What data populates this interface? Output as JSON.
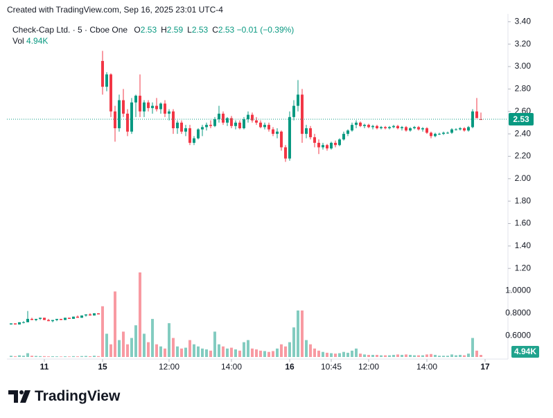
{
  "header": {
    "credit": "Created with TradingView.com, Sep 16, 2025 23:01 UTC-4"
  },
  "footer": {
    "brand": "TradingView"
  },
  "chart_data": {
    "type": "candlestick",
    "title": "Check-Cap Ltd. · 5 · Cboe One",
    "legend": {
      "labels": [
        "O",
        "H",
        "L",
        "C"
      ],
      "values": [
        2.53,
        2.59,
        2.53,
        2.53
      ],
      "change": "−0.01 (−0.39%)",
      "volume_name": "Vol",
      "volume": "4.94K"
    },
    "up_color": "#089981",
    "down_color": "#f23645",
    "open": [
      0.7,
      0.71,
      0.7,
      0.72,
      0.72,
      0.75,
      0.74,
      0.75,
      0.76,
      0.74,
      0.73,
      0.74,
      0.75,
      0.74,
      0.76,
      0.75,
      0.77,
      0.76,
      0.78,
      0.79,
      0.78,
      0.8,
      3.05,
      2.82,
      2.93,
      2.6,
      2.45,
      2.7,
      2.58,
      2.42,
      2.68,
      2.74,
      2.6,
      2.68,
      2.63,
      2.65,
      2.62,
      2.67,
      2.58,
      2.6,
      2.45,
      2.5,
      2.42,
      2.45,
      2.32,
      2.36,
      2.44,
      2.46,
      2.48,
      2.47,
      2.53,
      2.58,
      2.5,
      2.54,
      2.47,
      2.5,
      2.45,
      2.53,
      2.57,
      2.52,
      2.5,
      2.46,
      2.48,
      2.44,
      2.4,
      2.42,
      2.28,
      2.18,
      2.55,
      2.65,
      2.75,
      2.4,
      2.45,
      2.37,
      2.32,
      2.28,
      2.3,
      2.27,
      2.32,
      2.3,
      2.35,
      2.4,
      2.43,
      2.48,
      2.5,
      2.47,
      2.48,
      2.46,
      2.47,
      2.45,
      2.46,
      2.45,
      2.46,
      2.47,
      2.45,
      2.46,
      2.43,
      2.45,
      2.46,
      2.44,
      2.45,
      2.41,
      2.38,
      2.4,
      2.4,
      2.41,
      2.41,
      2.44,
      2.44,
      2.45,
      2.43,
      2.46,
      2.6,
      2.53
    ],
    "high": [
      0.71,
      0.71,
      0.72,
      0.73,
      0.82,
      0.76,
      0.75,
      0.76,
      0.76,
      0.75,
      0.74,
      0.75,
      0.75,
      0.76,
      0.76,
      0.77,
      0.78,
      0.78,
      0.79,
      0.8,
      0.8,
      0.8,
      3.14,
      2.95,
      2.94,
      2.65,
      2.75,
      2.8,
      2.62,
      2.72,
      2.75,
      2.93,
      2.7,
      2.7,
      2.68,
      2.72,
      2.68,
      2.7,
      2.62,
      2.62,
      2.52,
      2.52,
      2.48,
      2.48,
      2.38,
      2.45,
      2.48,
      2.5,
      2.52,
      2.55,
      2.65,
      2.6,
      2.55,
      2.56,
      2.52,
      2.52,
      2.55,
      2.6,
      2.59,
      2.55,
      2.52,
      2.5,
      2.5,
      2.46,
      2.45,
      2.43,
      2.3,
      2.6,
      2.7,
      2.88,
      2.8,
      2.48,
      2.47,
      2.4,
      2.35,
      2.32,
      2.31,
      2.33,
      2.34,
      2.36,
      2.42,
      2.44,
      2.5,
      2.52,
      2.51,
      2.49,
      2.49,
      2.48,
      2.48,
      2.47,
      2.47,
      2.47,
      2.48,
      2.48,
      2.47,
      2.47,
      2.46,
      2.47,
      2.47,
      2.46,
      2.46,
      2.42,
      2.41,
      2.41,
      2.42,
      2.42,
      2.45,
      2.45,
      2.46,
      2.46,
      2.47,
      2.62,
      2.72,
      2.59
    ],
    "low": [
      0.7,
      0.7,
      0.7,
      0.71,
      0.72,
      0.74,
      0.73,
      0.74,
      0.74,
      0.73,
      0.72,
      0.73,
      0.74,
      0.74,
      0.75,
      0.75,
      0.76,
      0.76,
      0.77,
      0.78,
      0.78,
      0.79,
      2.75,
      2.78,
      2.55,
      2.33,
      2.42,
      2.55,
      2.38,
      2.4,
      2.55,
      2.55,
      2.55,
      2.6,
      2.58,
      2.6,
      2.58,
      2.55,
      2.52,
      2.4,
      2.4,
      2.4,
      2.38,
      2.3,
      2.3,
      2.35,
      2.38,
      2.43,
      2.45,
      2.46,
      2.5,
      2.48,
      2.47,
      2.45,
      2.44,
      2.44,
      2.44,
      2.5,
      2.5,
      2.48,
      2.45,
      2.44,
      2.42,
      2.38,
      2.36,
      2.25,
      2.15,
      2.16,
      2.52,
      2.6,
      2.32,
      2.36,
      2.35,
      2.28,
      2.22,
      2.26,
      2.25,
      2.26,
      2.28,
      2.29,
      2.34,
      2.38,
      2.42,
      2.45,
      2.46,
      2.45,
      2.45,
      2.44,
      2.44,
      2.44,
      2.44,
      2.44,
      2.45,
      2.44,
      2.43,
      2.42,
      2.42,
      2.44,
      2.43,
      2.42,
      2.4,
      2.36,
      2.37,
      2.39,
      2.39,
      2.4,
      2.4,
      2.43,
      2.43,
      2.42,
      2.42,
      2.45,
      2.55,
      2.53
    ],
    "close": [
      0.71,
      0.7,
      0.72,
      0.72,
      0.75,
      0.74,
      0.75,
      0.76,
      0.74,
      0.73,
      0.74,
      0.75,
      0.74,
      0.76,
      0.75,
      0.77,
      0.76,
      0.78,
      0.79,
      0.78,
      0.8,
      0.79,
      2.82,
      2.93,
      2.6,
      2.45,
      2.7,
      2.58,
      2.42,
      2.68,
      2.74,
      2.6,
      2.68,
      2.63,
      2.65,
      2.62,
      2.67,
      2.58,
      2.6,
      2.45,
      2.5,
      2.42,
      2.45,
      2.32,
      2.36,
      2.44,
      2.46,
      2.48,
      2.47,
      2.53,
      2.58,
      2.5,
      2.54,
      2.47,
      2.5,
      2.45,
      2.53,
      2.57,
      2.52,
      2.5,
      2.46,
      2.48,
      2.44,
      2.4,
      2.42,
      2.28,
      2.18,
      2.55,
      2.65,
      2.75,
      2.4,
      2.45,
      2.37,
      2.32,
      2.28,
      2.3,
      2.27,
      2.32,
      2.3,
      2.35,
      2.4,
      2.43,
      2.48,
      2.5,
      2.47,
      2.48,
      2.46,
      2.47,
      2.45,
      2.46,
      2.45,
      2.46,
      2.47,
      2.45,
      2.46,
      2.43,
      2.45,
      2.46,
      2.44,
      2.45,
      2.41,
      2.38,
      2.4,
      2.4,
      2.41,
      2.41,
      2.44,
      2.44,
      2.45,
      2.43,
      2.46,
      2.6,
      2.54,
      2.53
    ],
    "volume": [
      3000,
      2000,
      4000,
      3000,
      9000,
      3000,
      2500,
      2000,
      2000,
      1500,
      1800,
      1500,
      1200,
      1600,
      1200,
      2000,
      1500,
      2200,
      2500,
      1800,
      3000,
      2000,
      120000,
      55000,
      30000,
      155000,
      40000,
      60000,
      30000,
      45000,
      75000,
      200000,
      55000,
      35000,
      90000,
      30000,
      25000,
      20000,
      80000,
      45000,
      25000,
      20000,
      22000,
      40000,
      30000,
      25000,
      20000,
      18000,
      15000,
      60000,
      30000,
      25000,
      20000,
      22000,
      18000,
      15000,
      35000,
      40000,
      20000,
      18000,
      15000,
      14000,
      12000,
      14000,
      20000,
      30000,
      25000,
      35000,
      70000,
      110000,
      110000,
      40000,
      30000,
      20000,
      15000,
      12000,
      10000,
      9000,
      8000,
      9000,
      12000,
      10000,
      15000,
      20000,
      8000,
      6000,
      5000,
      5000,
      5000,
      4000,
      4000,
      4000,
      5000,
      6000,
      5000,
      6000,
      5000,
      4000,
      4000,
      4000,
      6000,
      7000,
      5000,
      3000,
      3000,
      3000,
      6000,
      4000,
      5000,
      4000,
      8000,
      45000,
      15000,
      4940
    ],
    "xlim": [
      -1,
      119
    ],
    "xticks": [
      {
        "value": 8,
        "label": "11"
      },
      {
        "value": 22,
        "label": "15"
      },
      {
        "value": 38,
        "label": "12:00"
      },
      {
        "value": 53,
        "label": "14:00"
      },
      {
        "value": 67,
        "label": "16"
      },
      {
        "value": 77,
        "label": "10:45"
      },
      {
        "value": 86,
        "label": "12:00"
      },
      {
        "value": 100,
        "label": "14:00"
      },
      {
        "value": 114,
        "label": "17"
      }
    ],
    "ylim": [
      0.41,
      3.47
    ],
    "yticks": [
      {
        "value": 3.4,
        "label": "3.40"
      },
      {
        "value": 3.2,
        "label": "3.20"
      },
      {
        "value": 3.0,
        "label": "3.00"
      },
      {
        "value": 2.8,
        "label": "2.80"
      },
      {
        "value": 2.6,
        "label": "2.60"
      },
      {
        "value": 2.4,
        "label": "2.40"
      },
      {
        "value": 2.2,
        "label": "2.20"
      },
      {
        "value": 2.0,
        "label": "2.00"
      },
      {
        "value": 1.8,
        "label": "1.80"
      },
      {
        "value": 1.6,
        "label": "1.60"
      },
      {
        "value": 1.4,
        "label": "1.40"
      },
      {
        "value": 1.2,
        "label": "1.20"
      },
      {
        "value": 1.0,
        "label": "1.0000"
      },
      {
        "value": 0.8,
        "label": "0.8000"
      },
      {
        "value": 0.6,
        "label": "0.6000"
      }
    ],
    "grid": false,
    "last_price": 2.53
  }
}
